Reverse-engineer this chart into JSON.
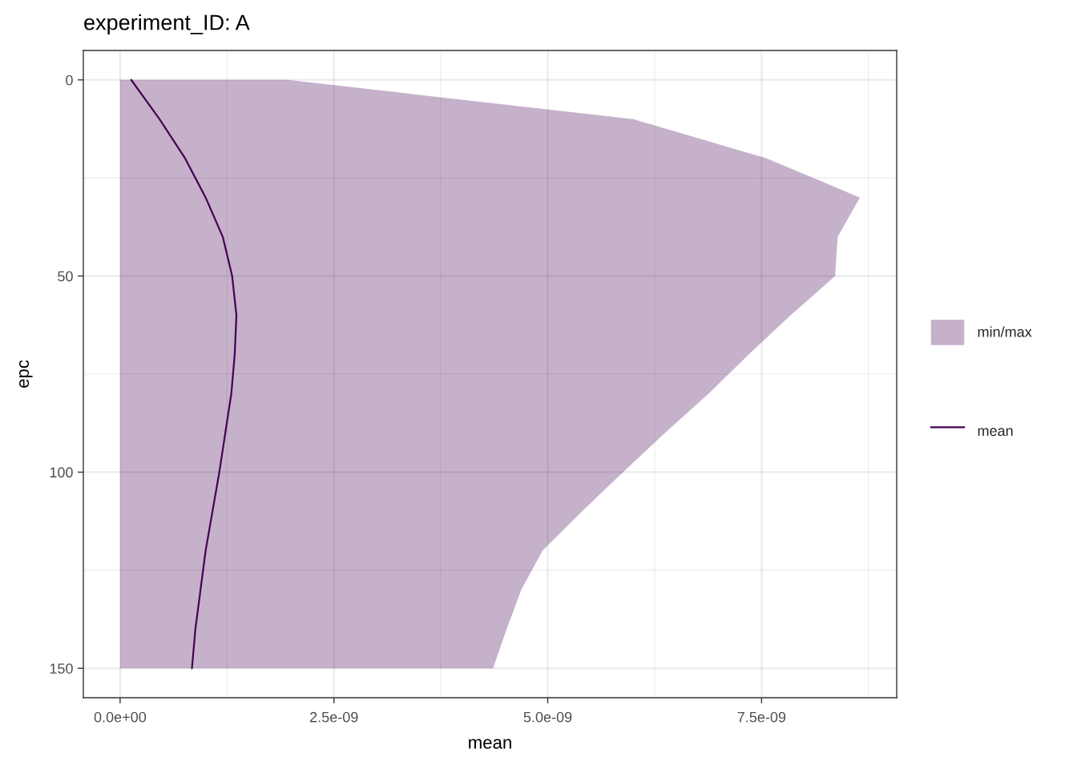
{
  "chart_data": {
    "type": "line",
    "title": "experiment_ID: A",
    "xlabel": "mean",
    "ylabel": "epc",
    "orientation": "horizontal",
    "x": [
      0,
      10,
      20,
      30,
      40,
      50,
      60,
      70,
      80,
      90,
      100,
      110,
      120,
      130,
      140,
      150
    ],
    "series": [
      {
        "name": "min/max",
        "type": "area",
        "color": "#c6b1cb",
        "values": [
          1.96e-09,
          6e-09,
          7.56e-09,
          8.65e-09,
          8.39e-09,
          8.36e-09,
          7.84e-09,
          7.35e-09,
          6.88e-09,
          6.37e-09,
          5.88e-09,
          5.4e-09,
          4.94e-09,
          4.69e-09,
          4.52e-09,
          4.36e-09
        ]
      },
      {
        "name": "mean",
        "color": "#440154",
        "values": [
          1.3e-10,
          4.6e-10,
          7.6e-10,
          1e-09,
          1.2e-09,
          1.31e-09,
          1.36e-09,
          1.34e-09,
          1.3e-09,
          1.23e-09,
          1.16e-09,
          1.08e-09,
          1e-09,
          9.4e-10,
          8.8e-10,
          8.4e-10
        ]
      }
    ],
    "xlim": [
      -4.3e-10,
      9.08e-09
    ],
    "xticks": [
      {
        "value": 0,
        "label": "0.0e+00"
      },
      {
        "value": 2.5e-09,
        "label": "2.5e-09"
      },
      {
        "value": 5e-09,
        "label": "5.0e-09"
      },
      {
        "value": 7.5e-09,
        "label": "7.5e-09"
      }
    ],
    "ylim": [
      157.5,
      -7.5
    ],
    "yticks": [
      0,
      50,
      100,
      150
    ],
    "grid": true,
    "legend": "right"
  }
}
